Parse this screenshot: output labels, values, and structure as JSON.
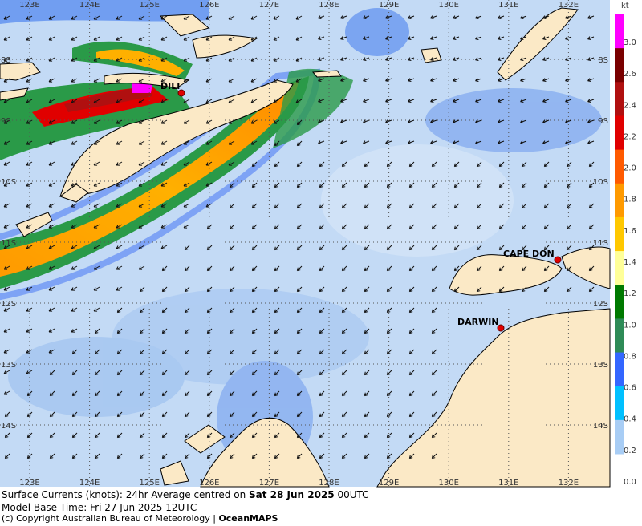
{
  "map": {
    "lon_labels": [
      "123E",
      "124E",
      "125E",
      "126E",
      "127E",
      "128E",
      "129E",
      "130E",
      "131E",
      "132E"
    ],
    "lat_labels": [
      "8S",
      "9S",
      "10S",
      "11S",
      "12S",
      "13S",
      "14S"
    ],
    "places": [
      "DILI",
      "CAPE DON",
      "DARWIN"
    ]
  },
  "legend": {
    "unit": "kt",
    "labels": [
      "3.0",
      "2.6",
      "2.4",
      "2.2",
      "2.0",
      "1.8",
      "1.6",
      "1.4",
      "1.2",
      "1.0",
      "0.8",
      "0.6",
      "0.4",
      "0.2",
      "0.0"
    ],
    "colors": [
      "#ff00ff",
      "#7a0000",
      "#b01010",
      "#e00000",
      "#ff5a00",
      "#ff9a00",
      "#ffc800",
      "#ffff99",
      "#007a00",
      "#2e8b57",
      "#3366ff",
      "#00c0ff",
      "#a8cdf5"
    ]
  },
  "footer": {
    "line1_prefix": "Surface Currents (knots): 24hr Average centred on ",
    "line1_date": "Sat 28 Jun 2025",
    "line1_suffix": " 00UTC",
    "line2": "Model Base Time: Fri 27 Jun 2025 12UTC",
    "line3_prefix": "(c) Copyright Australian Bureau of Meteorology | ",
    "line3_brand": "OceanMAPS"
  }
}
